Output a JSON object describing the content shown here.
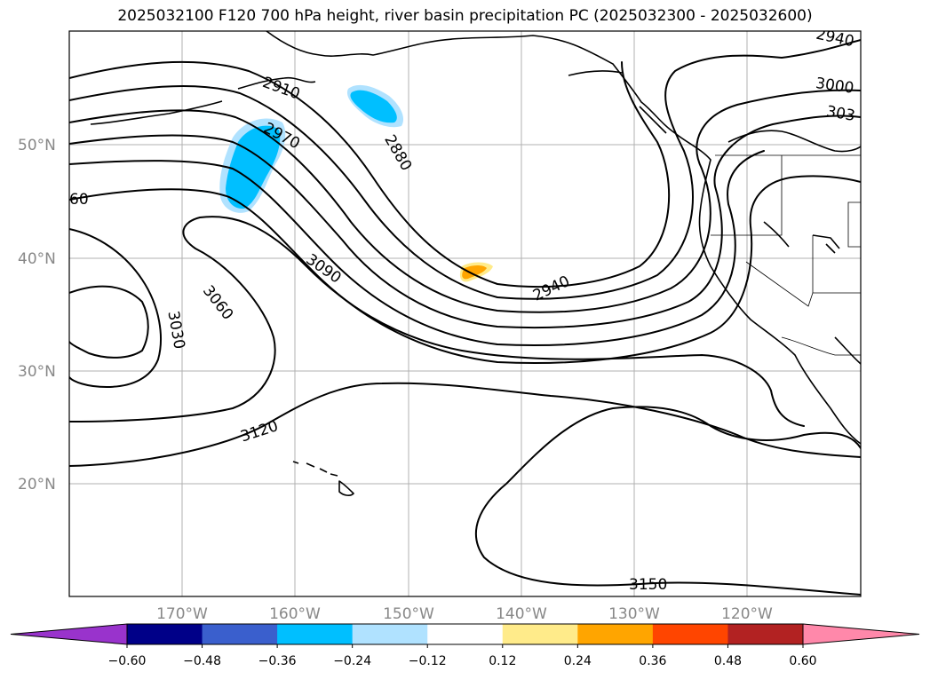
{
  "title": "2025032100 F120 700 hPa height, river basin precipitation PC (2025032300 - 2025032600)",
  "lat_labels": [
    "50°N",
    "40°N",
    "30°N",
    "20°N"
  ],
  "lon_labels": [
    "170°W",
    "160°W",
    "150°W",
    "140°W",
    "130°W",
    "120°W"
  ],
  "contour_labels": [
    "60",
    "2910",
    "2970",
    "2880",
    "3090",
    "3060",
    "3030",
    "2940",
    "3120",
    "3150",
    "2940",
    "3000",
    "303"
  ],
  "colorbar": {
    "ticks": [
      "−0.60",
      "−0.48",
      "−0.36",
      "−0.24",
      "−0.12",
      "0.12",
      "0.24",
      "0.36",
      "0.48",
      "0.60"
    ],
    "colors": [
      "#9933cc",
      "#000088",
      "#3a5fcd",
      "#00bfff",
      "#b0e2ff",
      "#ffffff",
      "#ffeb8a",
      "#ffa500",
      "#ff4500",
      "#b22222",
      "#ff88aa",
      "#ff88aa"
    ]
  }
}
